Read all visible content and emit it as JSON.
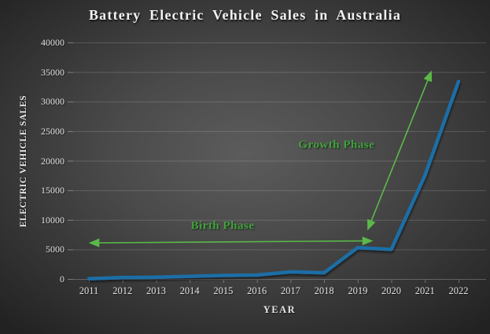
{
  "title": "Battery Electric Vehicle Sales in Australia",
  "colors": {
    "background_center": "#5c5c5c",
    "background_edge": "#222222",
    "title_text": "#f2f2f2",
    "tick_text": "#e0e0e0",
    "grid_line": "rgba(255,255,255,0.16)",
    "axis_line": "rgba(255,255,255,0.24)",
    "data_line": "#1e6ea6",
    "annotation_green_text": "#41a33c",
    "annotation_green_arrow": "#5ab948"
  },
  "chart_data": {
    "type": "line",
    "title": "Battery Electric Vehicle Sales in Australia",
    "xlabel": "YEAR",
    "ylabel": "ELECTRIC VEHICLE SALES",
    "categories": [
      "2011",
      "2012",
      "2013",
      "2014",
      "2015",
      "2016",
      "2017",
      "2018",
      "2019",
      "2020",
      "2021",
      "2022"
    ],
    "values": [
      50,
      250,
      300,
      450,
      600,
      670,
      1200,
      1050,
      5300,
      5000,
      17500,
      33400
    ],
    "ylim": [
      0,
      40000
    ],
    "y_ticks": [
      "0",
      "5000",
      "10000",
      "15000",
      "20000",
      "25000",
      "30000",
      "35000",
      "40000"
    ],
    "grid": "horizontal",
    "legend": "none",
    "line_color": "#1e6ea6",
    "annotations": [
      {
        "label": "Birth Phase",
        "text_color": "#41a33c",
        "arrow_color": "#5ab948",
        "arrow": {
          "x1": 2011.05,
          "y1": 6100,
          "x2": 2019.4,
          "y2": 6450
        },
        "label_x": 2014.98,
        "label_y": 8900
      },
      {
        "label": "Growth Phase",
        "text_color": "#41a33c",
        "arrow_color": "#5ab948",
        "arrow": {
          "x1": 2019.31,
          "y1": 8500,
          "x2": 2021.18,
          "y2": 34950
        },
        "label_x": 2018.37,
        "label_y": 22650
      }
    ]
  }
}
